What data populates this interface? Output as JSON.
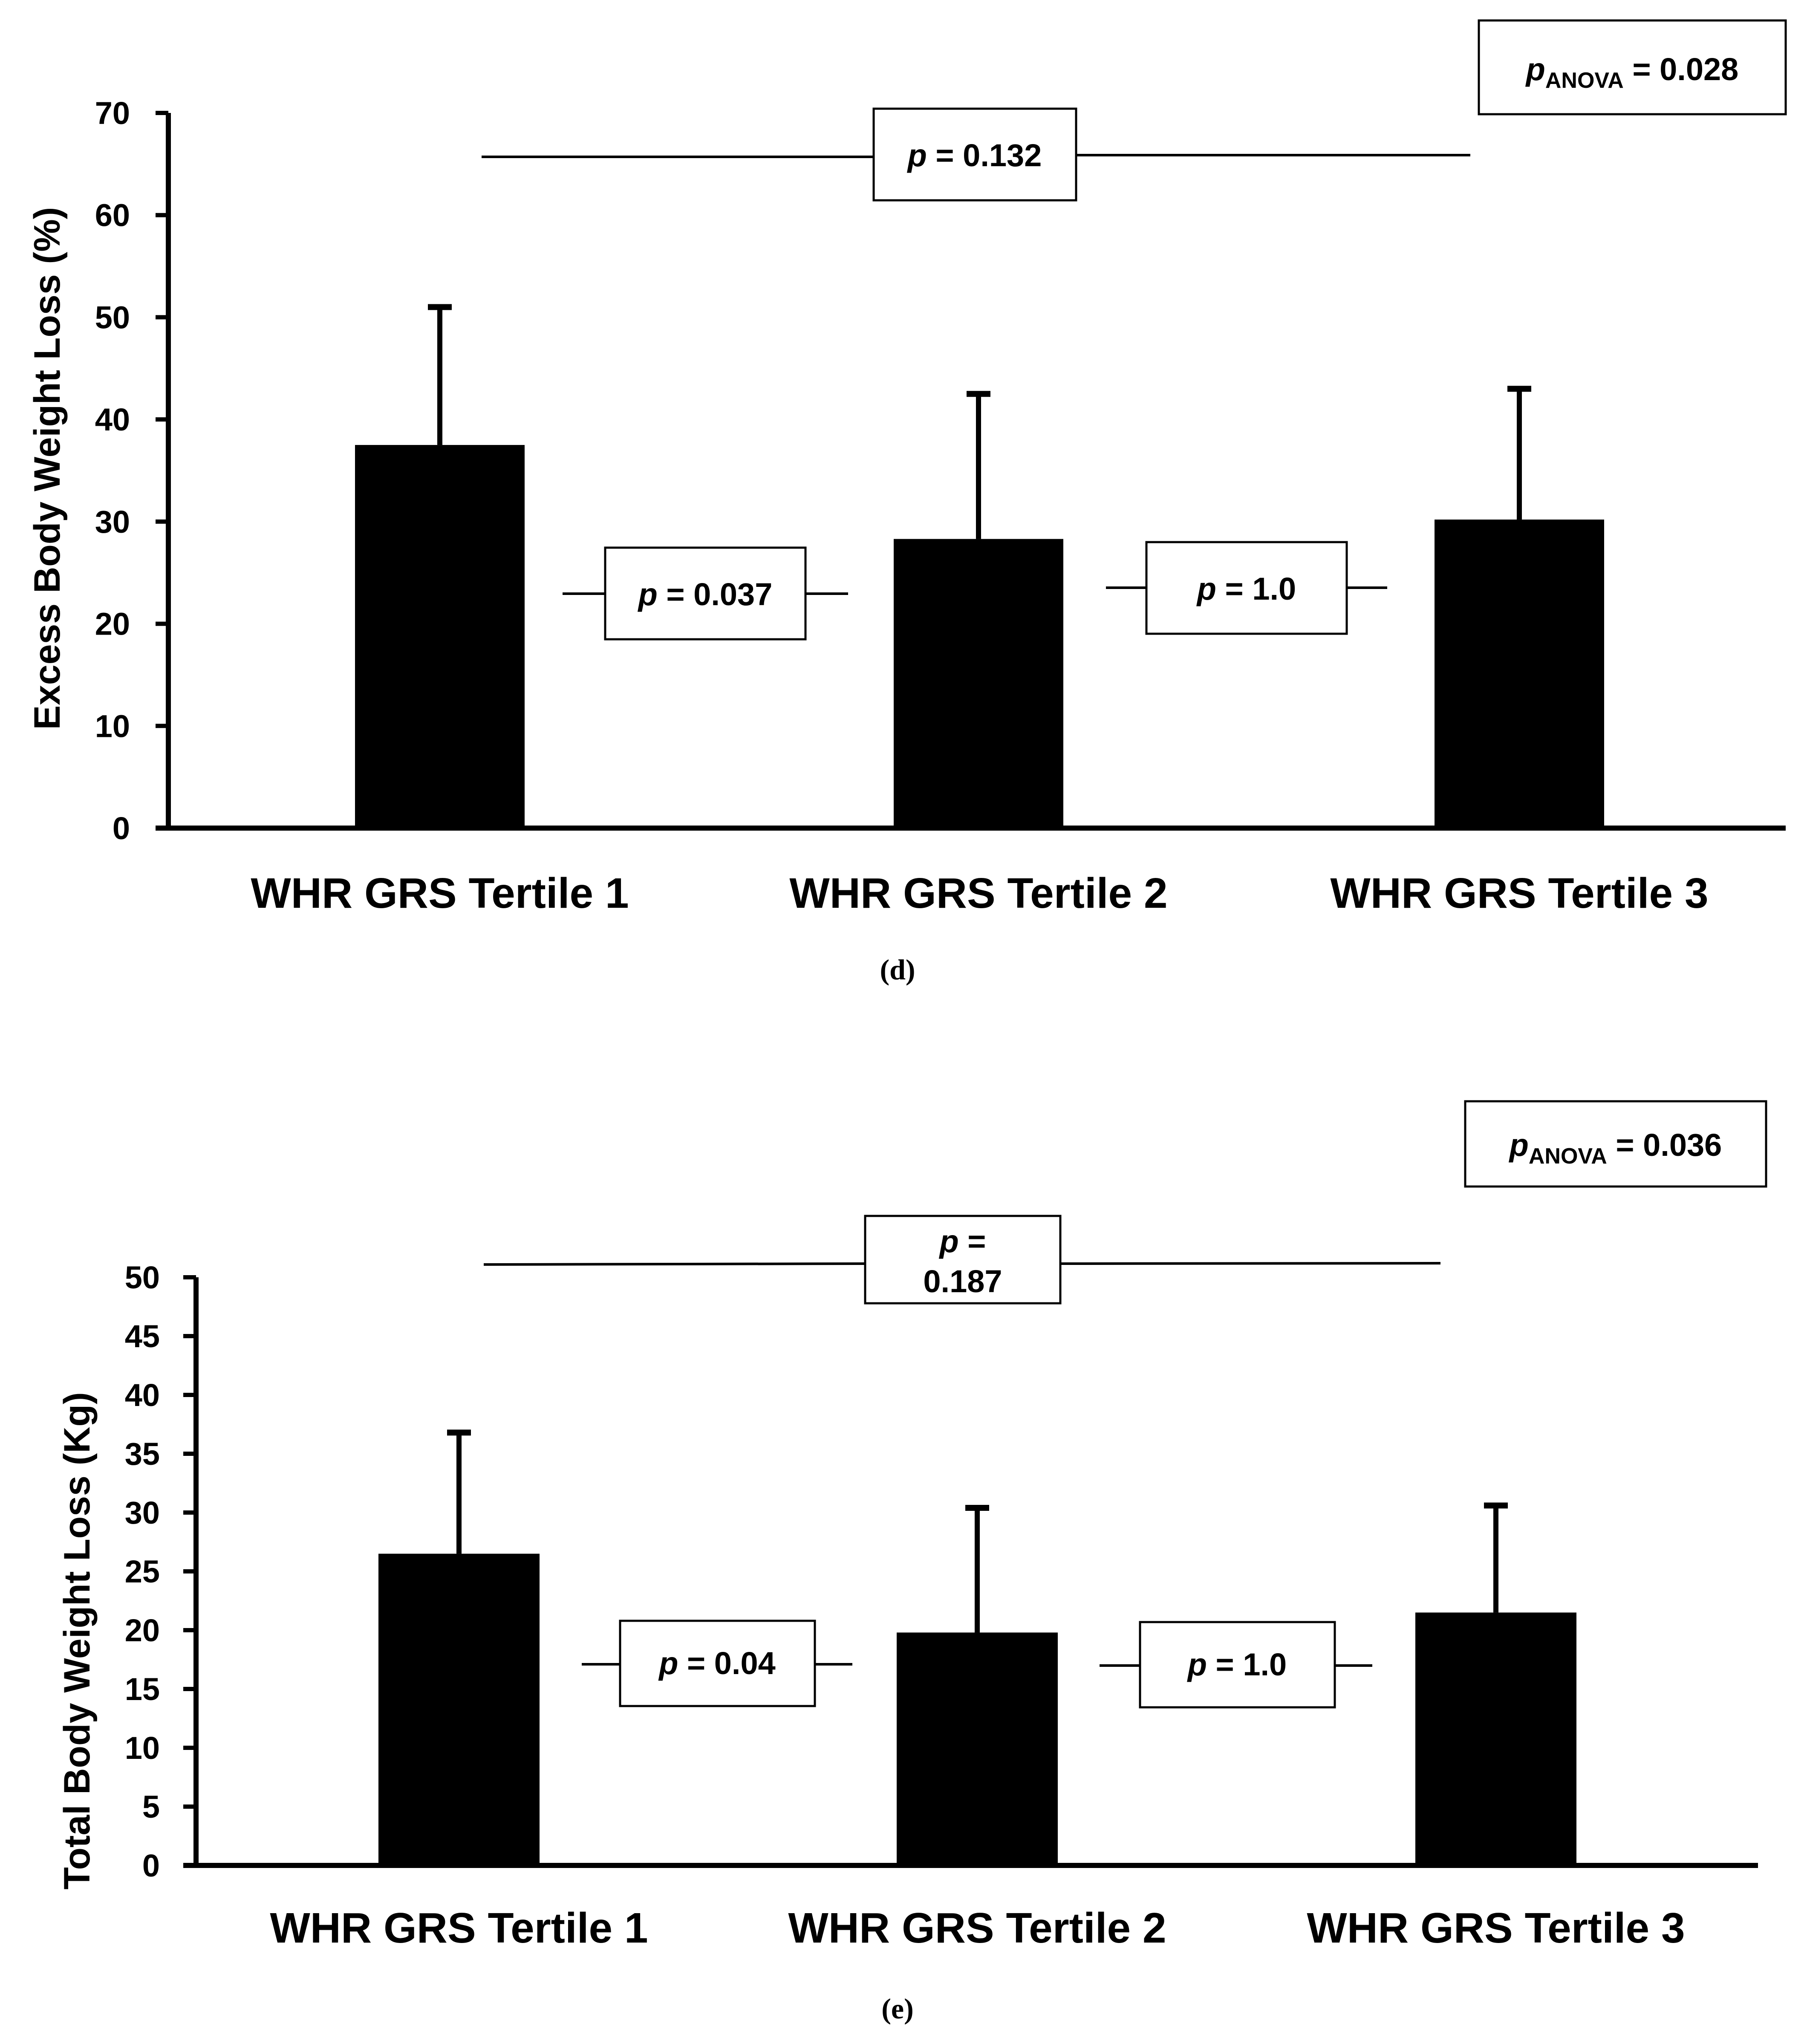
{
  "chart_data": [
    {
      "type": "bar",
      "panel_label": "(d)",
      "ylabel": "Excess Body Weight Loss (%)",
      "categories": [
        "WHR GRS Tertile 1",
        "WHR GRS Tertile 2",
        "WHR GRS Tertile 3"
      ],
      "values": [
        37.5,
        28.3,
        30.2
      ],
      "error_upper": [
        51.0,
        42.5,
        43.0
      ],
      "ylim": [
        0,
        70
      ],
      "yticks": [
        0,
        10,
        20,
        30,
        40,
        50,
        60,
        70
      ],
      "grid": false,
      "bar_color": "#000000",
      "annotations": {
        "anova": {
          "p": "p",
          "sub": "ANOVA",
          "rest": " = 0.028"
        },
        "overall": {
          "p": "p",
          "rest": " = 0.132",
          "y": 65.5
        },
        "pair12": {
          "p": "p",
          "rest": " = 0.037",
          "y": 23
        },
        "pair23": {
          "p": "p",
          "rest": " = 1.0",
          "y": 23.5
        }
      }
    },
    {
      "type": "bar",
      "panel_label": "(e)",
      "ylabel": "Total Body Weight Loss (Kg)",
      "categories": [
        "WHR GRS Tertile 1",
        "WHR GRS Tertile 2",
        "WHR GRS Tertile 3"
      ],
      "values": [
        26.5,
        19.8,
        21.5
      ],
      "error_upper": [
        36.8,
        30.4,
        30.6
      ],
      "ylim": [
        0,
        50
      ],
      "yticks": [
        0,
        5,
        10,
        15,
        20,
        25,
        30,
        35,
        40,
        45,
        50
      ],
      "grid": false,
      "bar_color": "#000000",
      "annotations": {
        "anova": {
          "p": "p",
          "sub": "ANOVA",
          "rest": " = 0.036"
        },
        "overall": {
          "p": "p",
          "rest_line1": " =",
          "rest_line2": "0.187",
          "y": 51.2
        },
        "pair12": {
          "p": "p",
          "rest": " = 0.04",
          "y": 17.2
        },
        "pair23": {
          "p": "p",
          "rest": " = 1.0",
          "y": 16.8
        }
      }
    }
  ]
}
